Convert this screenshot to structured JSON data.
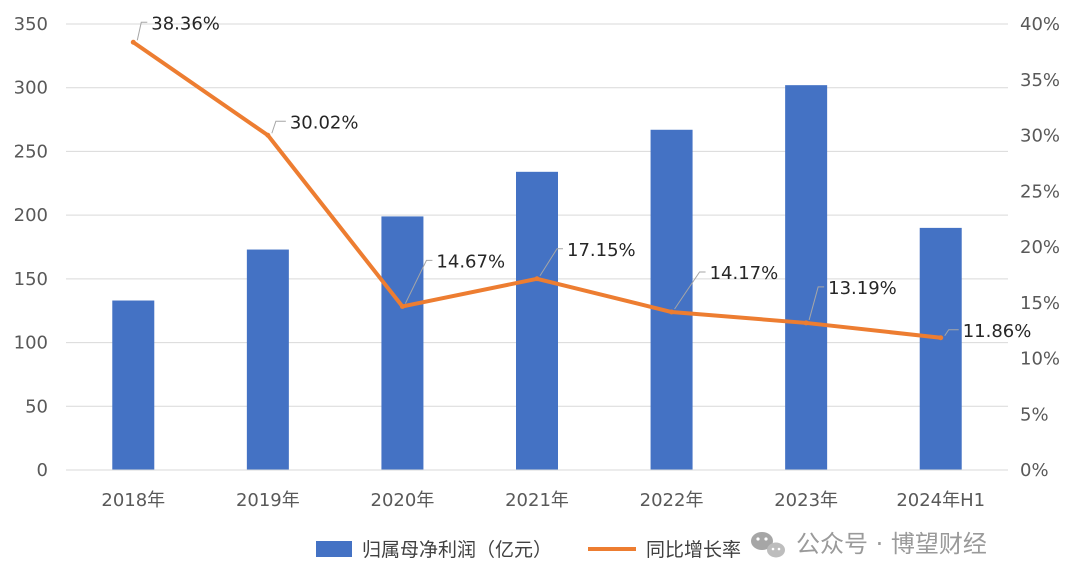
{
  "chart_data": {
    "type": "bar",
    "categories": [
      "2018年",
      "2019年",
      "2020年",
      "2021年",
      "2022年",
      "2023年",
      "2024年H1"
    ],
    "series": [
      {
        "name": "归属母净利润（亿元）",
        "type": "bar",
        "axis": "left",
        "color": "#4472C4",
        "values": [
          133,
          173,
          199,
          234,
          267,
          302,
          190
        ]
      },
      {
        "name": "同比增长率",
        "type": "line",
        "axis": "right",
        "color": "#ED7D31",
        "values": [
          38.36,
          30.02,
          14.67,
          17.15,
          14.17,
          13.19,
          11.86
        ],
        "labels": [
          "38.36%",
          "30.02%",
          "14.67%",
          "17.15%",
          "14.17%",
          "13.19%",
          "11.86%"
        ]
      }
    ],
    "y_left": {
      "ylim": [
        0,
        350
      ],
      "ticks": [
        0,
        50,
        100,
        150,
        200,
        250,
        300,
        350
      ]
    },
    "y_right": {
      "ylim": [
        0,
        40
      ],
      "ticks": [
        "0%",
        "5%",
        "10%",
        "15%",
        "20%",
        "25%",
        "30%",
        "35%",
        "40%"
      ]
    },
    "grid": true,
    "legend": "bottom"
  },
  "watermark": {
    "text": "公众号 · 博望财经"
  }
}
